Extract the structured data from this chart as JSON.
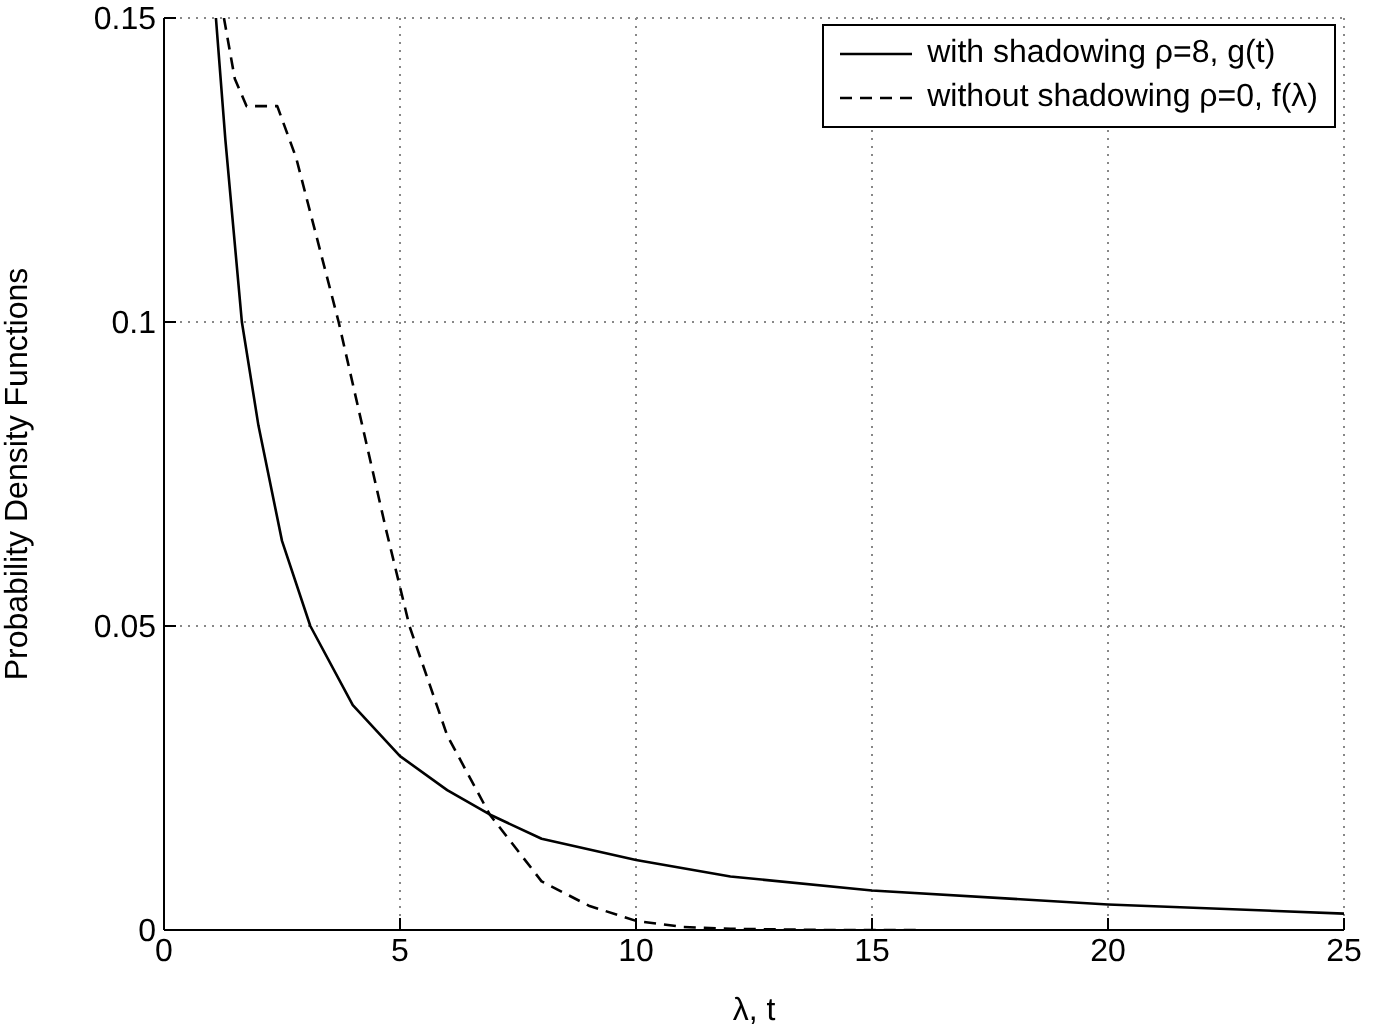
{
  "chart_data": {
    "type": "line",
    "xlabel": "λ, t",
    "ylabel": "Probability Density Functions",
    "xlim": [
      0,
      25
    ],
    "ylim": [
      0,
      0.15
    ],
    "xticks": [
      0,
      5,
      10,
      15,
      20,
      25
    ],
    "yticks": [
      0,
      0.05,
      0.1,
      0.15
    ],
    "grid": true,
    "legend": "top right",
    "marker": "none",
    "series": [
      {
        "name": "with shadowing ρ=8, g(t)",
        "color": "#000000",
        "line_style": "solid",
        "x": [
          1.1,
          1.3,
          1.65,
          2,
          2.5,
          3.1,
          4,
          5,
          6,
          6.9,
          8,
          10,
          12,
          15,
          20,
          25
        ],
        "values": [
          0.15,
          0.13,
          0.1,
          0.083,
          0.064,
          0.05,
          0.037,
          0.0286,
          0.023,
          0.019,
          0.015,
          0.0115,
          0.0088,
          0.0065,
          0.0042,
          0.0027
        ]
      },
      {
        "name": "without shadowing ρ=0, f(λ)",
        "color": "#000000",
        "line_style": "dashed",
        "x": [
          1.27,
          1.5,
          1.75,
          2.4,
          2.8,
          3.2,
          3.7,
          4.2,
          4.7,
          5.2,
          6,
          6.9,
          8,
          9,
          10,
          11,
          12,
          14,
          16
        ],
        "values": [
          0.15,
          0.14,
          0.1355,
          0.1355,
          0.127,
          0.115,
          0.1,
          0.083,
          0.066,
          0.05,
          0.032,
          0.019,
          0.008,
          0.004,
          0.0015,
          0.0005,
          0.0002,
          0,
          0
        ]
      }
    ]
  }
}
